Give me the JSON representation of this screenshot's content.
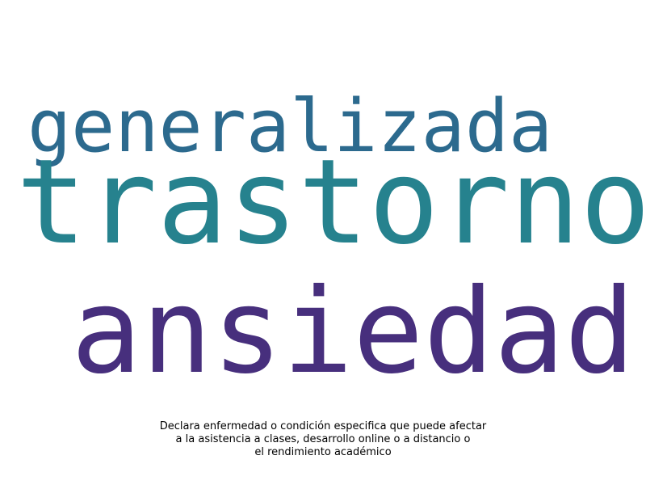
{
  "wordcloud": {
    "words": [
      {
        "text": "generalizada",
        "color": "#2c6a8e"
      },
      {
        "text": "trastorno",
        "color": "#26828e"
      },
      {
        "text": "ansiedad",
        "color": "#472f7d"
      }
    ]
  },
  "caption": {
    "line1": "Declara enfermedad o condición especifica que puede afectar",
    "line2": "a la asistencia a clases, desarrollo online o a distancio o",
    "line3": "el rendimiento académico"
  }
}
